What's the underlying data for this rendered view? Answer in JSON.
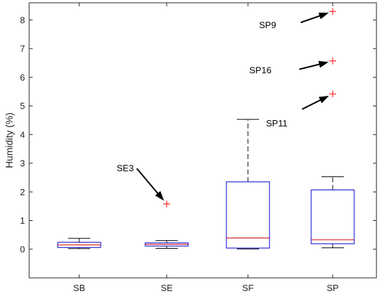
{
  "chart_data": {
    "type": "box",
    "title": "",
    "xlabel": "",
    "ylabel": "Humidity (%)",
    "ylim": [
      -1,
      8.6
    ],
    "yticks": [
      0,
      1,
      2,
      3,
      4,
      5,
      6,
      7,
      8
    ],
    "ytick_labels": [
      "0",
      "1",
      "2",
      "3",
      "4",
      "5",
      "6",
      "7",
      "8"
    ],
    "grid": false,
    "categories": [
      "SB",
      "SE",
      "SF",
      "SP"
    ],
    "boxes": [
      {
        "category": "SB",
        "whisker_low": 0.02,
        "q1": 0.06,
        "median": 0.15,
        "q3": 0.24,
        "whisker_high": 0.38,
        "outliers": []
      },
      {
        "category": "SE",
        "whisker_low": 0.03,
        "q1": 0.11,
        "median": 0.17,
        "q3": 0.22,
        "whisker_high": 0.3,
        "outliers": [
          1.58
        ]
      },
      {
        "category": "SF",
        "whisker_low": 0.01,
        "q1": 0.04,
        "median": 0.39,
        "q3": 2.35,
        "whisker_high": 4.53,
        "outliers": []
      },
      {
        "category": "SP",
        "whisker_low": 0.05,
        "q1": 0.19,
        "median": 0.33,
        "q3": 2.07,
        "whisker_high": 2.53,
        "outliers": [
          8.3,
          6.57,
          5.42
        ]
      }
    ],
    "annotations": [
      {
        "text": "SE3",
        "category": "SE",
        "value": 1.58
      },
      {
        "text": "SP9",
        "category": "SP",
        "value": 8.3
      },
      {
        "text": "SP16",
        "category": "SP",
        "value": 6.57
      },
      {
        "text": "SP11",
        "category": "SP",
        "value": 5.42
      }
    ],
    "colors": {
      "box": "#0000CC",
      "median": "#CC0000",
      "whisker": "#000000",
      "outlier": "#FF0000",
      "axis": "#262626"
    }
  }
}
